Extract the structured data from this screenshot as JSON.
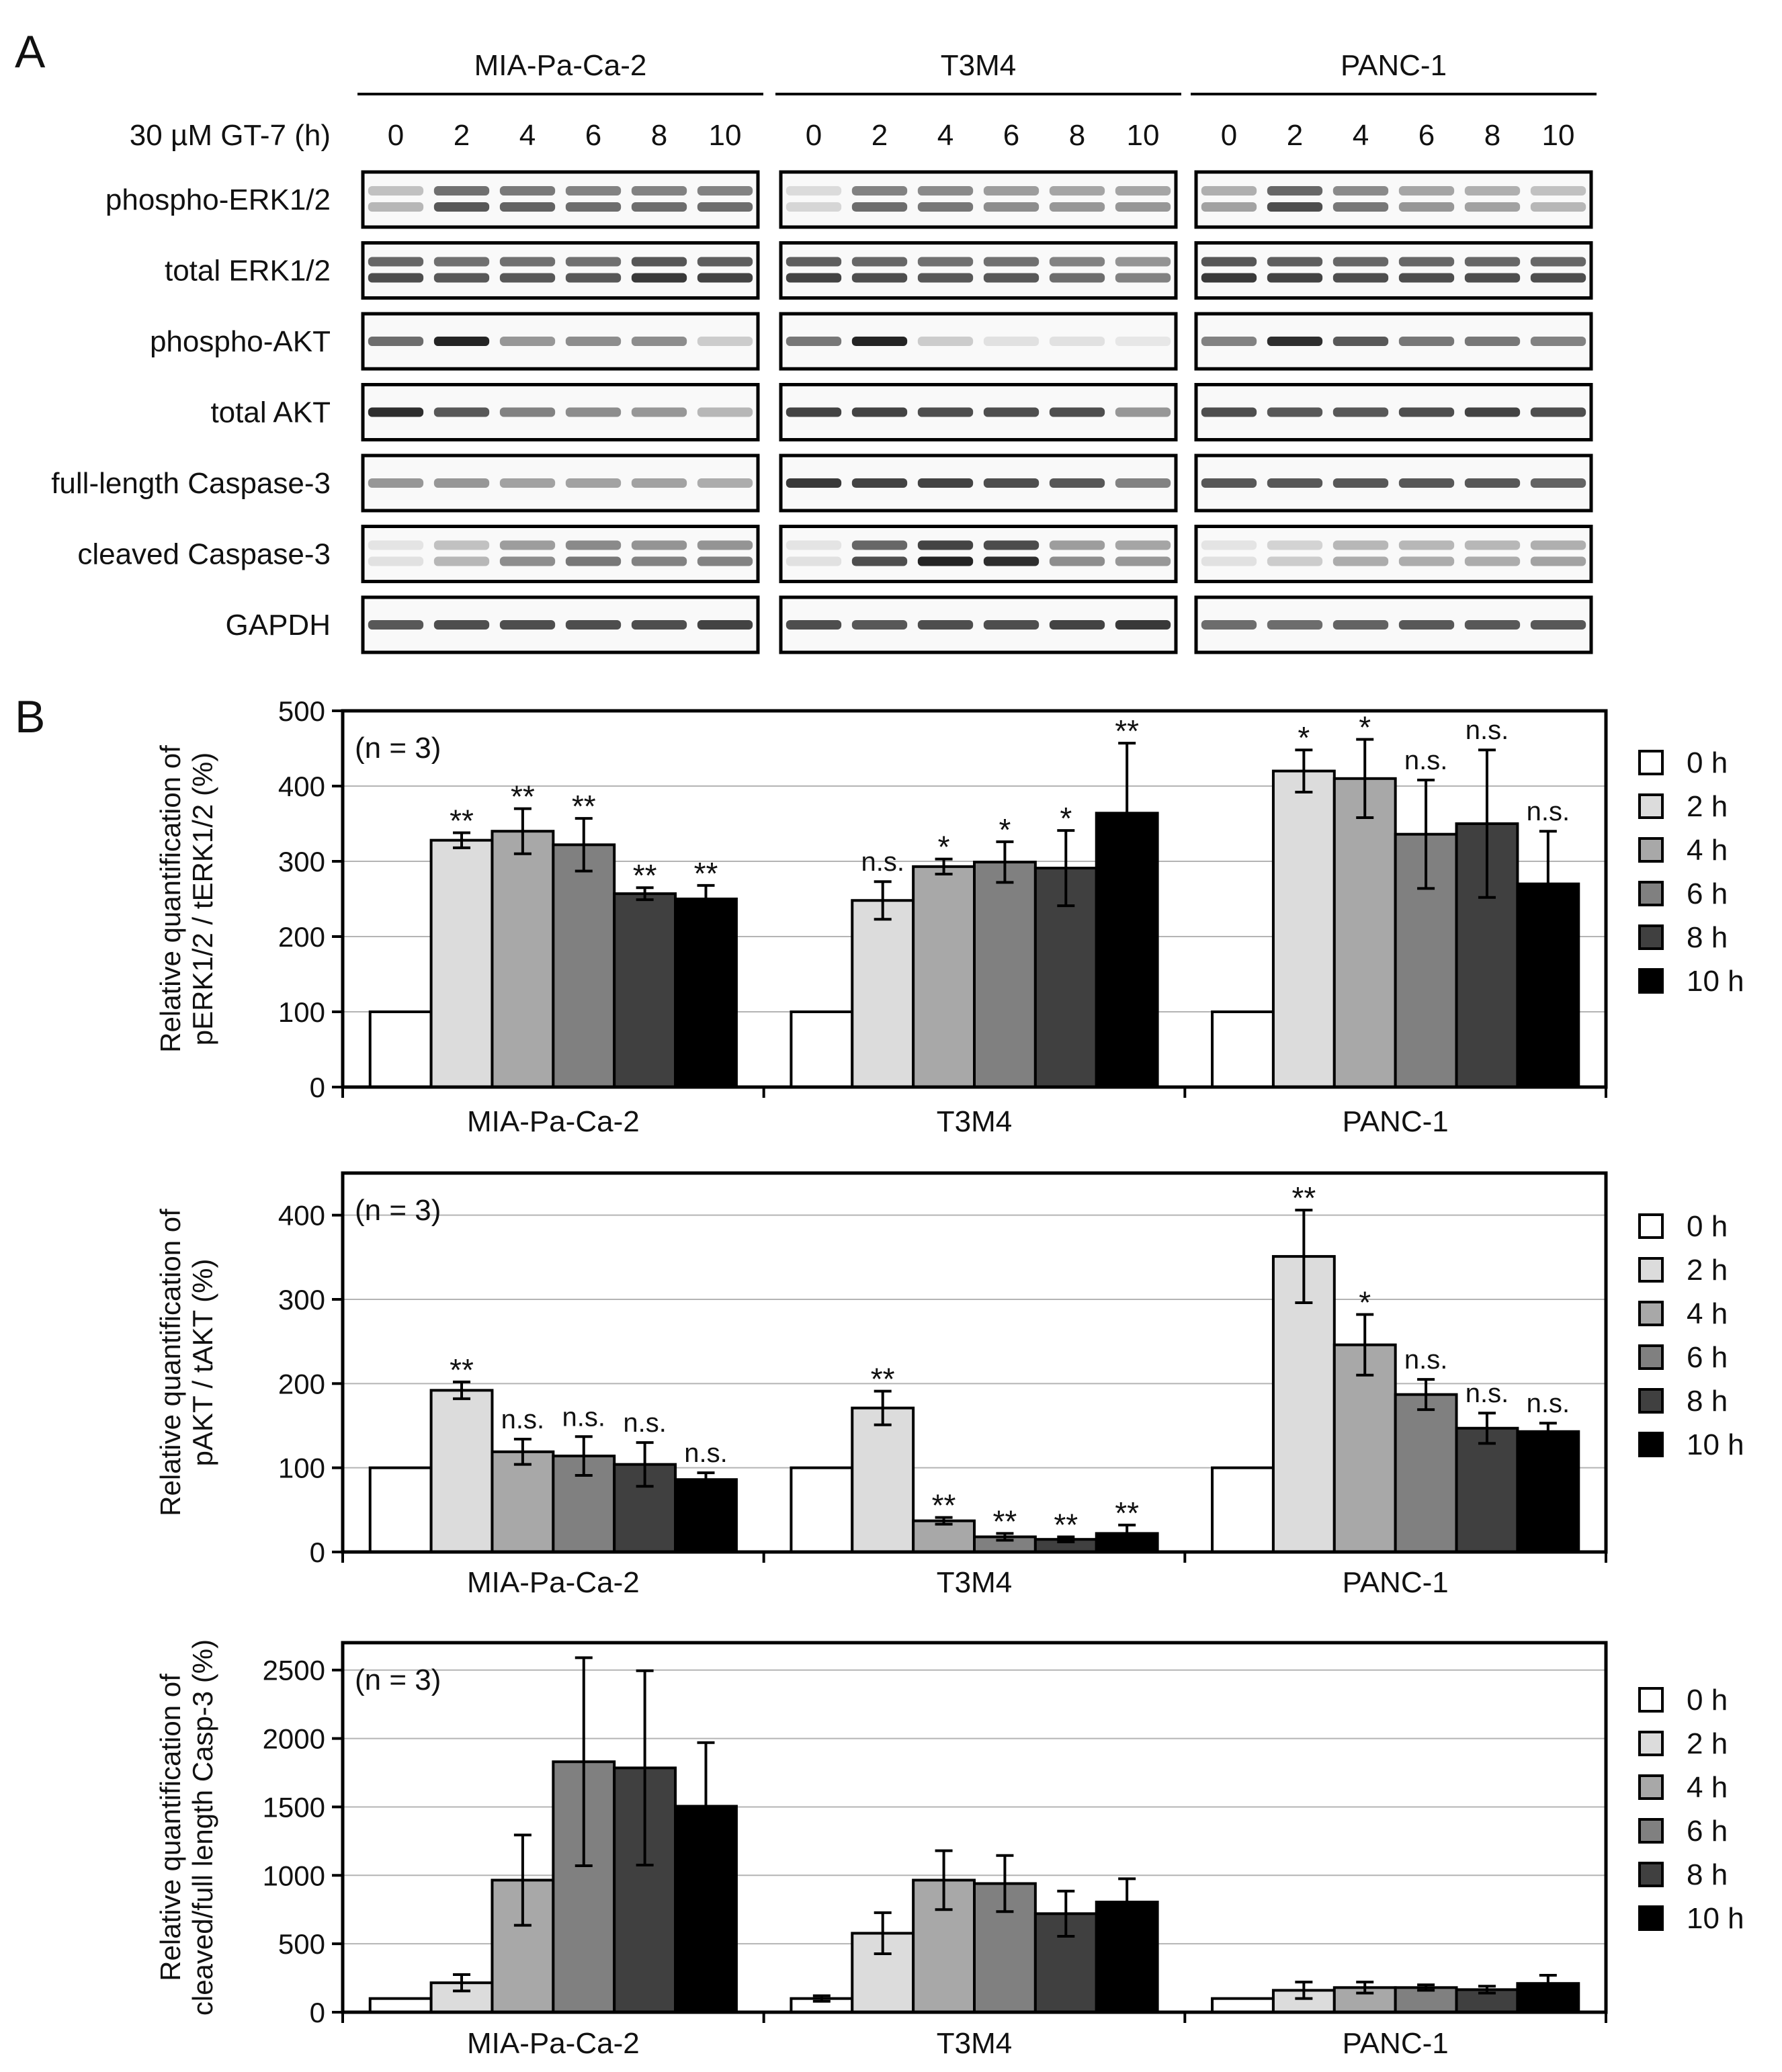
{
  "figure": {
    "panel_a": "A",
    "panel_b": "B",
    "n_label": "(n = 3)"
  },
  "blot": {
    "cell_lines": [
      "MIA-Pa-Ca-2",
      "T3M4",
      "PANC-1"
    ],
    "treatment_label": "30 µM GT-7 (h)",
    "timepoints": [
      "0",
      "2",
      "4",
      "6",
      "8",
      "10"
    ],
    "rows": [
      {
        "label": "phospho-ERK1/2",
        "bands": 2,
        "intensity": [
          [
            0.25,
            0.7,
            0.65,
            0.6,
            0.6,
            0.6
          ],
          [
            0.1,
            0.6,
            0.55,
            0.45,
            0.4,
            0.4
          ],
          [
            0.35,
            0.75,
            0.55,
            0.4,
            0.35,
            0.25
          ]
        ]
      },
      {
        "label": "total ERK1/2",
        "bands": 2,
        "intensity": [
          [
            0.75,
            0.7,
            0.7,
            0.7,
            0.85,
            0.8
          ],
          [
            0.8,
            0.75,
            0.7,
            0.7,
            0.6,
            0.5
          ],
          [
            0.85,
            0.8,
            0.75,
            0.75,
            0.75,
            0.75
          ]
        ]
      },
      {
        "label": "phospho-AKT",
        "bands": 1,
        "intensity": [
          [
            0.6,
            0.95,
            0.4,
            0.45,
            0.45,
            0.15
          ],
          [
            0.55,
            0.95,
            0.15,
            0.05,
            0.05,
            0.02
          ],
          [
            0.5,
            0.9,
            0.7,
            0.55,
            0.55,
            0.5
          ]
        ]
      },
      {
        "label": "total AKT",
        "bands": 1,
        "intensity": [
          [
            0.9,
            0.7,
            0.5,
            0.45,
            0.4,
            0.25
          ],
          [
            0.8,
            0.8,
            0.75,
            0.75,
            0.75,
            0.4
          ],
          [
            0.75,
            0.7,
            0.7,
            0.75,
            0.8,
            0.75
          ]
        ]
      },
      {
        "label": "full-length Caspase-3",
        "bands": 1,
        "intensity": [
          [
            0.4,
            0.4,
            0.35,
            0.35,
            0.35,
            0.3
          ],
          [
            0.85,
            0.8,
            0.8,
            0.75,
            0.7,
            0.5
          ],
          [
            0.7,
            0.7,
            0.7,
            0.7,
            0.7,
            0.65
          ]
        ]
      },
      {
        "label": "cleaved Caspase-3",
        "bands": 2,
        "intensity": [
          [
            0.05,
            0.25,
            0.45,
            0.55,
            0.5,
            0.5
          ],
          [
            0.05,
            0.75,
            0.95,
            0.9,
            0.45,
            0.4
          ],
          [
            0.05,
            0.15,
            0.3,
            0.3,
            0.3,
            0.35
          ]
        ]
      },
      {
        "label": "GAPDH",
        "bands": 1,
        "intensity": [
          [
            0.7,
            0.75,
            0.75,
            0.75,
            0.75,
            0.8
          ],
          [
            0.75,
            0.7,
            0.75,
            0.75,
            0.8,
            0.85
          ],
          [
            0.6,
            0.6,
            0.65,
            0.7,
            0.7,
            0.7
          ]
        ]
      }
    ]
  },
  "legend": {
    "entries": [
      "0 h",
      "2 h",
      "4 h",
      "6 h",
      "8 h",
      "10 h"
    ],
    "colors": [
      "#ffffff",
      "#dcdcdc",
      "#a8a8a8",
      "#808080",
      "#404040",
      "#000000"
    ]
  },
  "chart_data": [
    {
      "type": "bar",
      "ylabel_lines": [
        "Relative quantification of",
        "pERK1/2 / tERK1/2 (%)"
      ],
      "categories": [
        "MIA-Pa-Ca-2",
        "T3M4",
        "PANC-1"
      ],
      "ylim": [
        0,
        500
      ],
      "yticks": [
        "0",
        "100",
        "200",
        "300",
        "400",
        "500"
      ],
      "series": [
        {
          "name": "0 h",
          "values": [
            100,
            100,
            100
          ],
          "errors": [
            0,
            0,
            0
          ],
          "sig": [
            "",
            "",
            ""
          ]
        },
        {
          "name": "2 h",
          "values": [
            328,
            248,
            420
          ],
          "errors": [
            10,
            25,
            28
          ],
          "sig": [
            "**",
            "n.s.",
            "*"
          ]
        },
        {
          "name": "4 h",
          "values": [
            340,
            293,
            410
          ],
          "errors": [
            30,
            10,
            52
          ],
          "sig": [
            "**",
            "*",
            "*"
          ]
        },
        {
          "name": "6 h",
          "values": [
            322,
            299,
            336
          ],
          "errors": [
            35,
            27,
            72
          ],
          "sig": [
            "**",
            "*",
            "n.s."
          ]
        },
        {
          "name": "8 h",
          "values": [
            257,
            291,
            350
          ],
          "errors": [
            8,
            50,
            98
          ],
          "sig": [
            "**",
            "*",
            "n.s."
          ]
        },
        {
          "name": "10 h",
          "values": [
            250,
            364,
            270
          ],
          "errors": [
            18,
            93,
            70
          ],
          "sig": [
            "**",
            "**",
            "n.s."
          ]
        }
      ]
    },
    {
      "type": "bar",
      "ylabel_lines": [
        "Relative quantification of",
        "pAKT / tAKT (%)"
      ],
      "categories": [
        "MIA-Pa-Ca-2",
        "T3M4",
        "PANC-1"
      ],
      "ylim": [
        0,
        450
      ],
      "yticks": [
        "0",
        "100",
        "200",
        "300",
        "400"
      ],
      "series": [
        {
          "name": "0 h",
          "values": [
            100,
            100,
            100
          ],
          "errors": [
            0,
            0,
            0
          ],
          "sig": [
            "",
            "",
            ""
          ]
        },
        {
          "name": "2 h",
          "values": [
            192,
            171,
            351
          ],
          "errors": [
            10,
            20,
            55
          ],
          "sig": [
            "**",
            "**",
            "**"
          ]
        },
        {
          "name": "4 h",
          "values": [
            119,
            37,
            246
          ],
          "errors": [
            15,
            4,
            36
          ],
          "sig": [
            "n.s.",
            "**",
            "*"
          ]
        },
        {
          "name": "6 h",
          "values": [
            114,
            18,
            187
          ],
          "errors": [
            23,
            4,
            18
          ],
          "sig": [
            "n.s.",
            "**",
            "n.s."
          ]
        },
        {
          "name": "8 h",
          "values": [
            104,
            15,
            147
          ],
          "errors": [
            26,
            3,
            18
          ],
          "sig": [
            "n.s.",
            "**",
            "n.s."
          ]
        },
        {
          "name": "10 h",
          "values": [
            86,
            22,
            143
          ],
          "errors": [
            8,
            10,
            10
          ],
          "sig": [
            "n.s.",
            "**",
            "n.s."
          ]
        }
      ]
    },
    {
      "type": "bar",
      "ylabel_lines": [
        "Relative quantification of",
        "cleaved/full length Casp-3 (%)"
      ],
      "categories": [
        "MIA-Pa-Ca-2",
        "T3M4",
        "PANC-1"
      ],
      "ylim": [
        0,
        2700
      ],
      "yticks": [
        "0",
        "500",
        "1000",
        "1500",
        "2000",
        "2500"
      ],
      "series": [
        {
          "name": "0 h",
          "values": [
            100,
            100,
            100
          ],
          "errors": [
            0,
            20,
            0
          ],
          "sig": [
            "",
            "",
            ""
          ]
        },
        {
          "name": "2 h",
          "values": [
            215,
            577,
            160
          ],
          "errors": [
            60,
            150,
            60
          ],
          "sig": [
            "",
            "",
            ""
          ]
        },
        {
          "name": "4 h",
          "values": [
            965,
            965,
            180
          ],
          "errors": [
            330,
            215,
            40
          ],
          "sig": [
            "",
            "",
            ""
          ]
        },
        {
          "name": "6 h",
          "values": [
            1830,
            940,
            180
          ],
          "errors": [
            760,
            205,
            20
          ],
          "sig": [
            "",
            "",
            ""
          ]
        },
        {
          "name": "8 h",
          "values": [
            1785,
            720,
            165
          ],
          "errors": [
            710,
            165,
            25
          ],
          "sig": [
            "",
            "",
            ""
          ]
        },
        {
          "name": "10 h",
          "values": [
            1505,
            805,
            210
          ],
          "errors": [
            465,
            170,
            60
          ],
          "sig": [
            "",
            "",
            ""
          ]
        }
      ]
    }
  ]
}
